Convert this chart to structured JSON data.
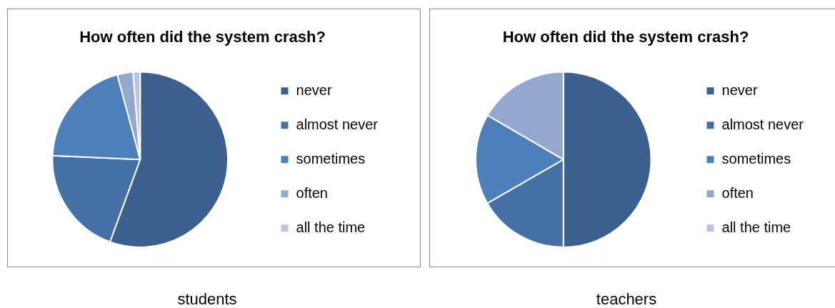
{
  "chart_data": [
    {
      "type": "pie",
      "title": "How often did the system crash?",
      "categories": [
        "never",
        "almost never",
        "sometimes",
        "often",
        "all the time"
      ],
      "values": [
        55.6,
        20.1,
        20.1,
        2.9,
        1.3
      ],
      "colors": [
        "#3b5f8e",
        "#4470a5",
        "#4d7fbb",
        "#93a8cf",
        "#b8c6e2"
      ],
      "legend": "right",
      "annotations": [
        "students"
      ]
    },
    {
      "type": "pie",
      "title": "How often did the system crash?",
      "categories": [
        "never",
        "almost never",
        "sometimes",
        "often",
        "all the time"
      ],
      "values": [
        50,
        16.7,
        16.7,
        16.6,
        0
      ],
      "colors": [
        "#3b5f8e",
        "#4470a5",
        "#4d7fbb",
        "#93a8cf",
        "#b8c6e2"
      ],
      "legend": "right",
      "annotations": [
        "teachers"
      ]
    }
  ]
}
